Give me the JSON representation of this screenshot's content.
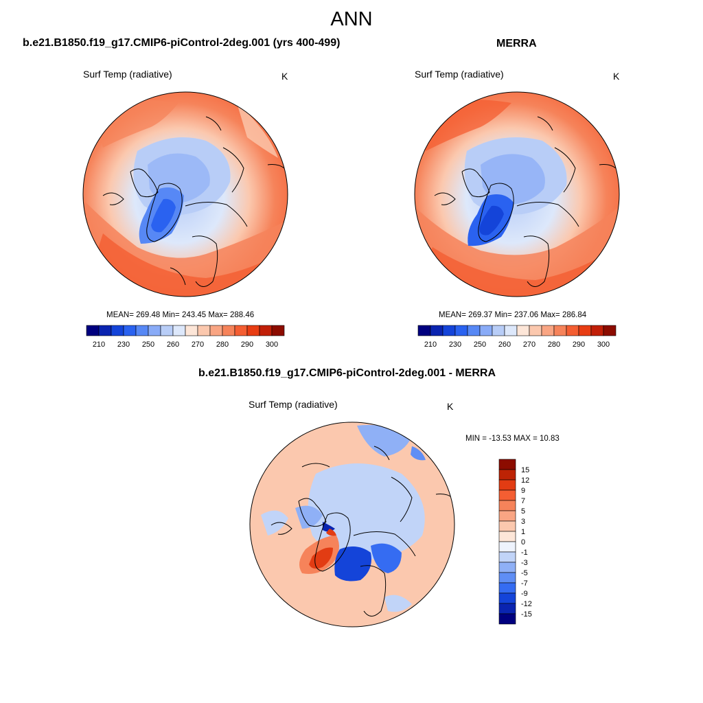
{
  "figure": {
    "title": "ANN"
  },
  "panels": {
    "model": {
      "title": "b.e21.B1850.f19_g17.CMIP6-piControl-2deg.001 (yrs 400-499)",
      "variable": "Surf Temp (radiative)",
      "units": "K",
      "stats": "MEAN= 269.48  Min= 243.45  Max= 288.46"
    },
    "obs": {
      "title": "MERRA",
      "variable": "Surf Temp (radiative)",
      "units": "K",
      "stats": "MEAN= 269.37  Min= 237.06  Max= 286.84"
    },
    "diff": {
      "title": "b.e21.B1850.f19_g17.CMIP6-piControl-2deg.001 - MERRA",
      "variable": "Surf Temp (radiative)",
      "units": "K",
      "stats": "MIN = -13.53 MAX =  10.83"
    }
  },
  "colorbars": {
    "temperature": {
      "labels": [
        "210",
        "230",
        "250",
        "260",
        "270",
        "280",
        "290",
        "300"
      ],
      "colors": [
        "#00007f",
        "#0a24b0",
        "#1444d9",
        "#2a62f0",
        "#5788f5",
        "#89abf7",
        "#b8cdf7",
        "#dde8fb",
        "#fde6d8",
        "#fbc8ae",
        "#f9a583",
        "#f6835a",
        "#f45e32",
        "#e83d13",
        "#c11f08",
        "#8c0c00"
      ]
    },
    "difference": {
      "labels": [
        "15",
        "12",
        "9",
        "7",
        "5",
        "3",
        "1",
        "0",
        "-1",
        "-3",
        "-5",
        "-7",
        "-9",
        "-12",
        "-15"
      ],
      "colors": [
        "#8c0c00",
        "#bd2305",
        "#e23c13",
        "#f45e32",
        "#f6835a",
        "#f9a583",
        "#fbc8ae",
        "#fde6d8",
        "#eef3fd",
        "#c1d4f8",
        "#8fb0f6",
        "#5f8ef5",
        "#356cf2",
        "#1444d9",
        "#0a24b0",
        "#00007f"
      ]
    }
  }
}
